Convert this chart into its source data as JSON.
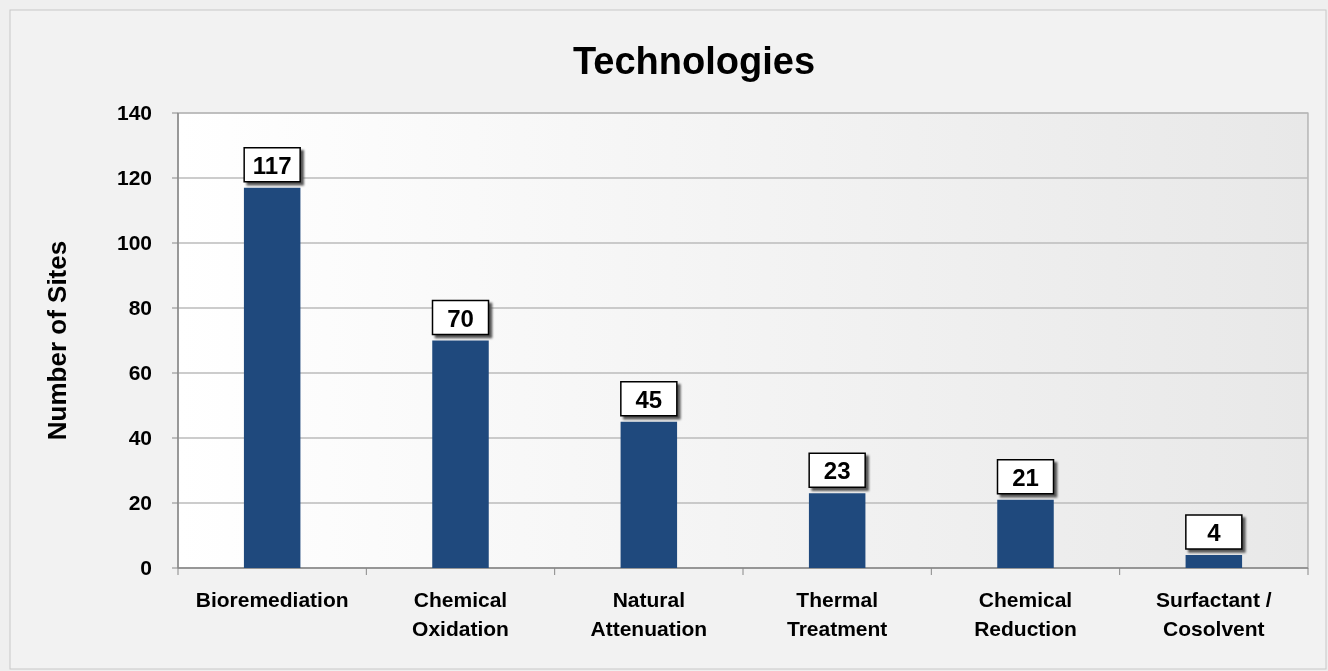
{
  "chart_data": {
    "type": "bar",
    "title": "Technologies",
    "ylabel": "Number of Sites",
    "categories": [
      "Bioremediation",
      "Chemical\nOxidation",
      "Natural\nAttenuation",
      "Thermal\nTreatment",
      "Chemical\nReduction",
      "Surfactant /\nCosolvent"
    ],
    "values": [
      117,
      70,
      45,
      23,
      21,
      4
    ],
    "color": "#1f497d",
    "ylim": [
      0,
      140
    ],
    "yticks": [
      0,
      20,
      40,
      60,
      80,
      100,
      120,
      140
    ],
    "grid": "y",
    "data_labels": true
  }
}
